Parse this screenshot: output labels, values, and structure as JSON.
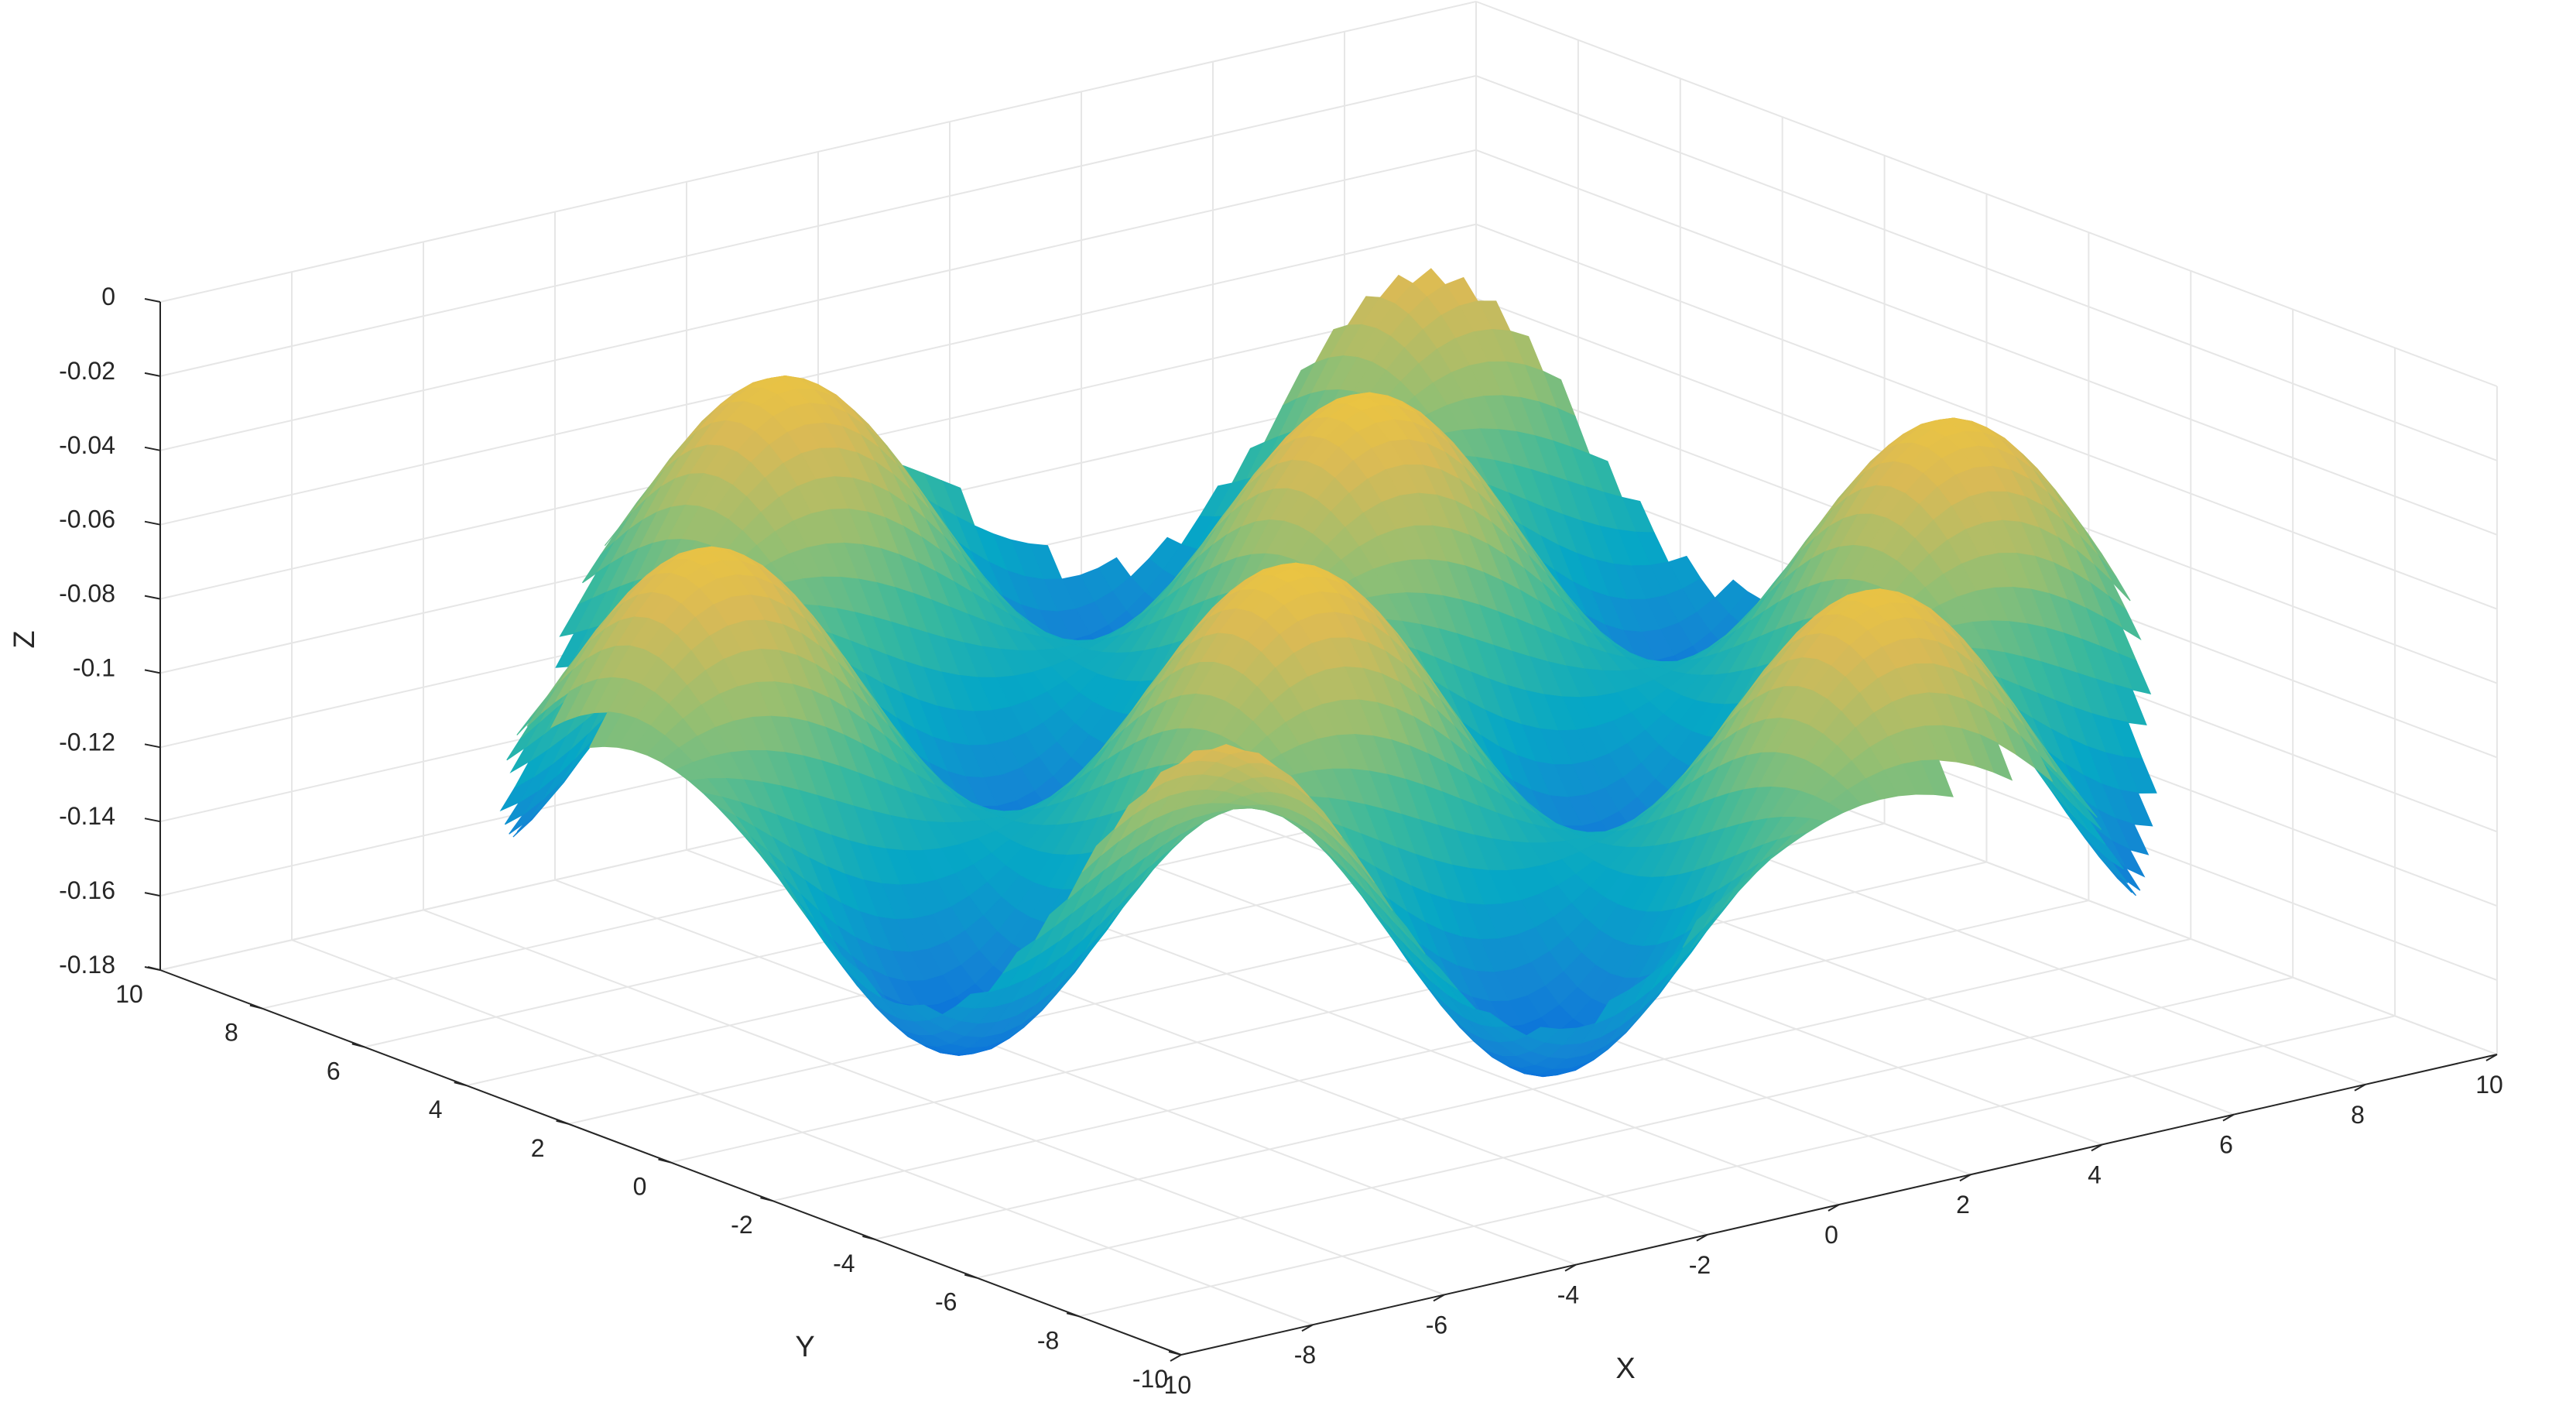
{
  "chart_data": {
    "type": "surface",
    "title": "",
    "xlabel": "X",
    "ylabel": "Y",
    "zlabel": "Z",
    "xlim": [
      -10,
      10
    ],
    "ylim": [
      -10,
      10
    ],
    "zlim": [
      -0.18,
      0
    ],
    "grid": true,
    "colormap": "parula",
    "x_ticks": [
      "-10",
      "-8",
      "-6",
      "-4",
      "-2",
      "0",
      "2",
      "4",
      "6",
      "8",
      "10"
    ],
    "y_ticks": [
      "-10",
      "-8",
      "-6",
      "-4",
      "-2",
      "0",
      "2",
      "4",
      "6",
      "8",
      "10"
    ],
    "z_ticks": [
      "0",
      "-0.02",
      "-0.04",
      "-0.06",
      "-0.08",
      "-0.1",
      "-0.12",
      "-0.14",
      "-0.16",
      "-0.18"
    ],
    "surface": {
      "domain_radius": 9.8,
      "peak_z": -0.006,
      "trough_z": -0.175,
      "peak_positions_x": [
        -7.5,
        -2.5,
        2.5,
        7.5
      ],
      "peak_positions_y": [
        -7.5,
        -2.5,
        2.5,
        7.5
      ],
      "grid_samples": 72
    },
    "colors": {
      "background": "#ffffff",
      "grid": "#e6e6e6",
      "axis": "#262626",
      "colormap_stops": [
        "#352a87",
        "#0363e1",
        "#1485d4",
        "#06a7c6",
        "#38b99e",
        "#92bf73",
        "#d9ba56",
        "#fcce2e",
        "#f9fb0e"
      ]
    }
  }
}
